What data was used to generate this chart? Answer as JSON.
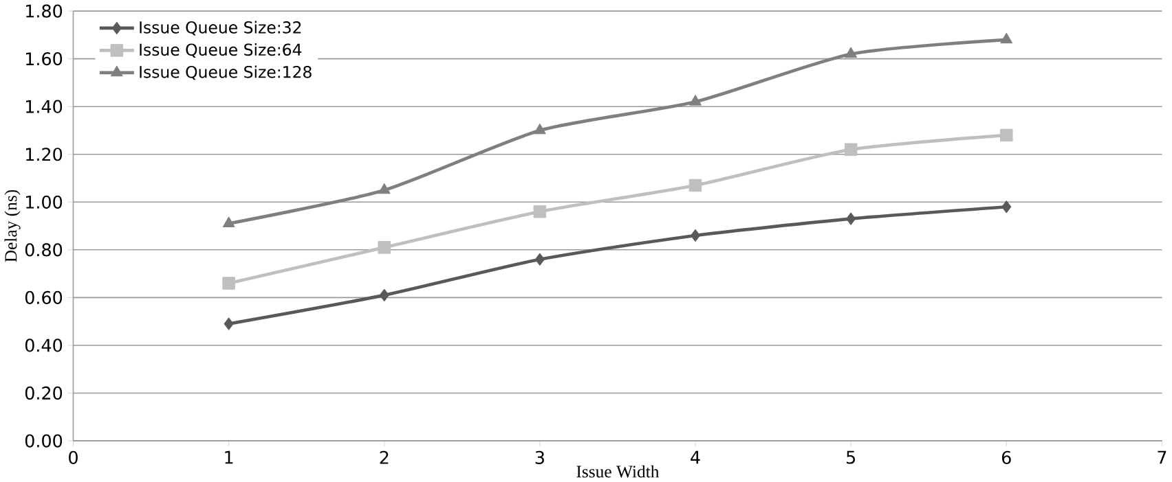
{
  "chart_data": {
    "type": "line",
    "xlabel": "Issue Width",
    "ylabel": "Delay (ns)",
    "x": [
      1,
      2,
      3,
      4,
      5,
      6
    ],
    "series": [
      {
        "name": "Issue Queue Size:32",
        "color": "#595959",
        "marker": "diamond",
        "values": [
          0.49,
          0.61,
          0.76,
          0.86,
          0.93,
          0.98
        ]
      },
      {
        "name": "Issue Queue Size:64",
        "color": "#bfbfbf",
        "marker": "square",
        "values": [
          0.66,
          0.81,
          0.96,
          1.07,
          1.22,
          1.28
        ]
      },
      {
        "name": "Issue Queue Size:128",
        "color": "#7f7f7f",
        "marker": "triangle",
        "values": [
          0.91,
          1.05,
          1.3,
          1.42,
          1.62,
          1.68
        ]
      }
    ],
    "xlim": [
      0,
      7
    ],
    "xticks": [
      0,
      1,
      2,
      3,
      4,
      5,
      6,
      7
    ],
    "ylim": [
      0,
      1.8
    ],
    "yticks": [
      {
        "value": 0,
        "label": "0.00"
      },
      {
        "value": 0.2,
        "label": "0.20"
      },
      {
        "value": 0.4,
        "label": "0.40"
      },
      {
        "value": 0.6,
        "label": "0.60"
      },
      {
        "value": 0.8,
        "label": "0.80"
      },
      {
        "value": 1.0,
        "label": "1.00"
      },
      {
        "value": 1.2,
        "label": "1.20"
      },
      {
        "value": 1.4,
        "label": "1.40"
      },
      {
        "value": 1.6,
        "label": "1.60"
      },
      {
        "value": 1.8,
        "label": "1.80"
      }
    ],
    "grid": "y",
    "legend": "top left",
    "line_style": "solid"
  }
}
